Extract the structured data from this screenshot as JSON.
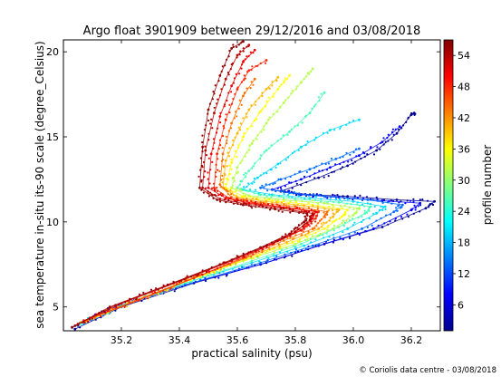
{
  "chart_data": {
    "type": "scatter",
    "title": "Argo float 3901909 between 29/12/2016 and 03/08/2018",
    "xlabel": "practical salinity (psu)",
    "ylabel": "sea temperature in-situ its-90 scale (degree_Celsius)",
    "xlim": [
      35.0,
      36.3
    ],
    "ylim": [
      3.6,
      20.7
    ],
    "x_ticks": [
      35.2,
      35.4,
      35.6,
      35.8,
      36.0,
      36.2
    ],
    "x_tick_labels": [
      "35.2",
      "35.4",
      "35.6",
      "35.8",
      "36.0",
      "36.2"
    ],
    "y_ticks": [
      5,
      10,
      15,
      20
    ],
    "y_tick_labels": [
      "5",
      "10",
      "15",
      "20"
    ],
    "grid": false,
    "colorbar": {
      "label": "profile number",
      "range": [
        1,
        57
      ],
      "colormap": "jet",
      "ticks": [
        6,
        12,
        18,
        24,
        30,
        36,
        42,
        48,
        54
      ],
      "tick_labels": [
        "6",
        "12",
        "18",
        "24",
        "30",
        "36",
        "42",
        "48",
        "54"
      ]
    },
    "series": [
      {
        "profile": 2,
        "points": [
          [
            35.04,
            3.7
          ],
          [
            35.2,
            5.0
          ],
          [
            35.45,
            6.4
          ],
          [
            35.7,
            7.6
          ],
          [
            35.9,
            8.7
          ],
          [
            36.1,
            9.7
          ],
          [
            36.25,
            10.8
          ],
          [
            36.28,
            11.2
          ],
          [
            36.15,
            11.3
          ],
          [
            35.98,
            11.5
          ],
          [
            35.85,
            11.6
          ],
          [
            35.75,
            11.8
          ],
          [
            35.88,
            12.6
          ],
          [
            35.98,
            13.3
          ],
          [
            36.08,
            14.2
          ],
          [
            36.15,
            15.2
          ],
          [
            36.2,
            16.3
          ],
          [
            36.21,
            16.4
          ]
        ]
      },
      {
        "profile": 8,
        "points": [
          [
            35.03,
            3.8
          ],
          [
            35.18,
            5.0
          ],
          [
            35.42,
            6.3
          ],
          [
            35.68,
            7.5
          ],
          [
            35.88,
            8.6
          ],
          [
            36.07,
            9.6
          ],
          [
            36.2,
            10.7
          ],
          [
            36.23,
            11.1
          ],
          [
            36.1,
            11.25
          ],
          [
            35.95,
            11.45
          ],
          [
            35.82,
            11.6
          ],
          [
            35.72,
            11.9
          ],
          [
            35.82,
            12.5
          ],
          [
            35.92,
            13.2
          ],
          [
            36.02,
            13.9
          ],
          [
            36.1,
            14.7
          ],
          [
            36.16,
            15.6
          ]
        ]
      },
      {
        "profile": 14,
        "points": [
          [
            35.05,
            3.9
          ],
          [
            35.2,
            5.1
          ],
          [
            35.44,
            6.4
          ],
          [
            35.68,
            7.6
          ],
          [
            35.86,
            8.6
          ],
          [
            36.03,
            9.6
          ],
          [
            36.14,
            10.6
          ],
          [
            36.17,
            11.0
          ],
          [
            36.05,
            11.3
          ],
          [
            35.9,
            11.5
          ],
          [
            35.78,
            11.7
          ],
          [
            35.68,
            12.0
          ],
          [
            35.75,
            12.5
          ],
          [
            35.85,
            13.1
          ],
          [
            35.94,
            13.7
          ],
          [
            36.02,
            14.3
          ]
        ]
      },
      {
        "profile": 20,
        "points": [
          [
            35.04,
            3.9
          ],
          [
            35.2,
            5.1
          ],
          [
            35.42,
            6.4
          ],
          [
            35.65,
            7.6
          ],
          [
            35.83,
            8.6
          ],
          [
            35.98,
            9.6
          ],
          [
            36.08,
            10.5
          ],
          [
            36.11,
            10.9
          ],
          [
            36.0,
            11.2
          ],
          [
            35.85,
            11.4
          ],
          [
            35.72,
            11.6
          ],
          [
            35.62,
            11.9
          ],
          [
            35.67,
            12.6
          ],
          [
            35.74,
            13.4
          ],
          [
            35.82,
            14.4
          ],
          [
            35.92,
            15.4
          ],
          [
            36.02,
            16.0
          ]
        ]
      },
      {
        "profile": 26,
        "points": [
          [
            35.06,
            4.0
          ],
          [
            35.22,
            5.2
          ],
          [
            35.44,
            6.5
          ],
          [
            35.65,
            7.7
          ],
          [
            35.82,
            8.7
          ],
          [
            35.95,
            9.7
          ],
          [
            36.04,
            10.5
          ],
          [
            36.06,
            10.9
          ],
          [
            35.95,
            11.15
          ],
          [
            35.8,
            11.35
          ],
          [
            35.68,
            11.6
          ],
          [
            35.6,
            12.0
          ],
          [
            35.64,
            13.0
          ],
          [
            35.7,
            14.2
          ],
          [
            35.78,
            15.3
          ],
          [
            35.85,
            16.4
          ],
          [
            35.9,
            17.6
          ]
        ]
      },
      {
        "profile": 32,
        "points": [
          [
            35.05,
            4.0
          ],
          [
            35.22,
            5.2
          ],
          [
            35.42,
            6.5
          ],
          [
            35.62,
            7.7
          ],
          [
            35.8,
            8.7
          ],
          [
            35.93,
            9.6
          ],
          [
            36.0,
            10.4
          ],
          [
            36.02,
            10.8
          ],
          [
            35.9,
            11.1
          ],
          [
            35.76,
            11.3
          ],
          [
            35.64,
            11.55
          ],
          [
            35.58,
            12.0
          ],
          [
            35.6,
            13.2
          ],
          [
            35.65,
            14.6
          ],
          [
            35.7,
            15.8
          ],
          [
            35.76,
            17.0
          ],
          [
            35.82,
            18.2
          ],
          [
            35.86,
            19.0
          ]
        ]
      },
      {
        "profile": 36,
        "points": [
          [
            35.07,
            4.1
          ],
          [
            35.24,
            5.3
          ],
          [
            35.44,
            6.6
          ],
          [
            35.63,
            7.8
          ],
          [
            35.79,
            8.8
          ],
          [
            35.9,
            9.6
          ],
          [
            35.96,
            10.3
          ],
          [
            35.98,
            10.7
          ],
          [
            35.86,
            11.0
          ],
          [
            35.72,
            11.25
          ],
          [
            35.62,
            11.5
          ],
          [
            35.56,
            12.0
          ],
          [
            35.58,
            13.5
          ],
          [
            35.62,
            15.0
          ],
          [
            35.68,
            16.5
          ],
          [
            35.74,
            17.8
          ],
          [
            35.78,
            18.6
          ]
        ]
      },
      {
        "profile": 40,
        "points": [
          [
            35.06,
            4.1
          ],
          [
            35.24,
            5.3
          ],
          [
            35.43,
            6.6
          ],
          [
            35.62,
            7.8
          ],
          [
            35.77,
            8.8
          ],
          [
            35.88,
            9.6
          ],
          [
            35.93,
            10.3
          ],
          [
            35.95,
            10.7
          ],
          [
            35.83,
            10.95
          ],
          [
            35.7,
            11.2
          ],
          [
            35.6,
            11.45
          ],
          [
            35.55,
            12.0
          ],
          [
            35.56,
            13.6
          ],
          [
            35.6,
            15.2
          ],
          [
            35.64,
            16.6
          ],
          [
            35.7,
            17.8
          ],
          [
            35.74,
            18.5
          ]
        ]
      },
      {
        "profile": 44,
        "points": [
          [
            35.08,
            4.2
          ],
          [
            35.25,
            5.4
          ],
          [
            35.45,
            6.7
          ],
          [
            35.63,
            7.9
          ],
          [
            35.76,
            8.9
          ],
          [
            35.86,
            9.6
          ],
          [
            35.9,
            10.3
          ],
          [
            35.91,
            10.6
          ],
          [
            35.8,
            10.9
          ],
          [
            35.68,
            11.15
          ],
          [
            35.58,
            11.45
          ],
          [
            35.54,
            12.2
          ],
          [
            35.55,
            14.0
          ],
          [
            35.58,
            15.8
          ],
          [
            35.62,
            17.4
          ],
          [
            35.66,
            18.4
          ]
        ]
      },
      {
        "profile": 48,
        "points": [
          [
            35.07,
            4.2
          ],
          [
            35.26,
            5.4
          ],
          [
            35.45,
            6.7
          ],
          [
            35.62,
            7.9
          ],
          [
            35.74,
            8.9
          ],
          [
            35.83,
            9.6
          ],
          [
            35.87,
            10.2
          ],
          [
            35.88,
            10.6
          ],
          [
            35.77,
            10.85
          ],
          [
            35.66,
            11.1
          ],
          [
            35.57,
            11.4
          ],
          [
            35.52,
            12.0
          ],
          [
            35.53,
            14.0
          ],
          [
            35.56,
            16.0
          ],
          [
            35.6,
            17.8
          ],
          [
            35.64,
            18.9
          ],
          [
            35.7,
            19.5
          ]
        ]
      },
      {
        "profile": 51,
        "points": [
          [
            35.05,
            4.0
          ],
          [
            35.2,
            5.2
          ],
          [
            35.4,
            6.5
          ],
          [
            35.58,
            7.7
          ],
          [
            35.72,
            8.7
          ],
          [
            35.82,
            9.5
          ],
          [
            35.86,
            10.2
          ],
          [
            35.87,
            10.6
          ],
          [
            35.76,
            10.85
          ],
          [
            35.64,
            11.1
          ],
          [
            35.56,
            11.4
          ],
          [
            35.5,
            12.0
          ],
          [
            35.51,
            14.0
          ],
          [
            35.54,
            16.2
          ],
          [
            35.58,
            18.0
          ],
          [
            35.62,
            19.4
          ],
          [
            35.66,
            20.1
          ]
        ]
      },
      {
        "profile": 54,
        "points": [
          [
            35.04,
            3.9
          ],
          [
            35.18,
            5.1
          ],
          [
            35.38,
            6.4
          ],
          [
            35.56,
            7.6
          ],
          [
            35.7,
            8.6
          ],
          [
            35.8,
            9.4
          ],
          [
            35.85,
            10.1
          ],
          [
            35.86,
            10.5
          ],
          [
            35.75,
            10.8
          ],
          [
            35.63,
            11.05
          ],
          [
            35.54,
            11.35
          ],
          [
            35.48,
            12.0
          ],
          [
            35.49,
            14.2
          ],
          [
            35.52,
            16.4
          ],
          [
            35.56,
            18.4
          ],
          [
            35.6,
            19.8
          ],
          [
            35.64,
            20.4
          ]
        ]
      },
      {
        "profile": 56,
        "points": [
          [
            35.03,
            3.8
          ],
          [
            35.16,
            5.0
          ],
          [
            35.36,
            6.3
          ],
          [
            35.54,
            7.5
          ],
          [
            35.68,
            8.5
          ],
          [
            35.78,
            9.3
          ],
          [
            35.83,
            10.0
          ],
          [
            35.84,
            10.5
          ],
          [
            35.73,
            10.75
          ],
          [
            35.62,
            11.0
          ],
          [
            35.53,
            11.3
          ],
          [
            35.47,
            12.0
          ],
          [
            35.48,
            14.4
          ],
          [
            35.5,
            16.6
          ],
          [
            35.54,
            18.6
          ],
          [
            35.58,
            20.2
          ],
          [
            35.62,
            20.6
          ]
        ]
      }
    ]
  },
  "credit": "© Coriolis data centre - 03/08/2018"
}
